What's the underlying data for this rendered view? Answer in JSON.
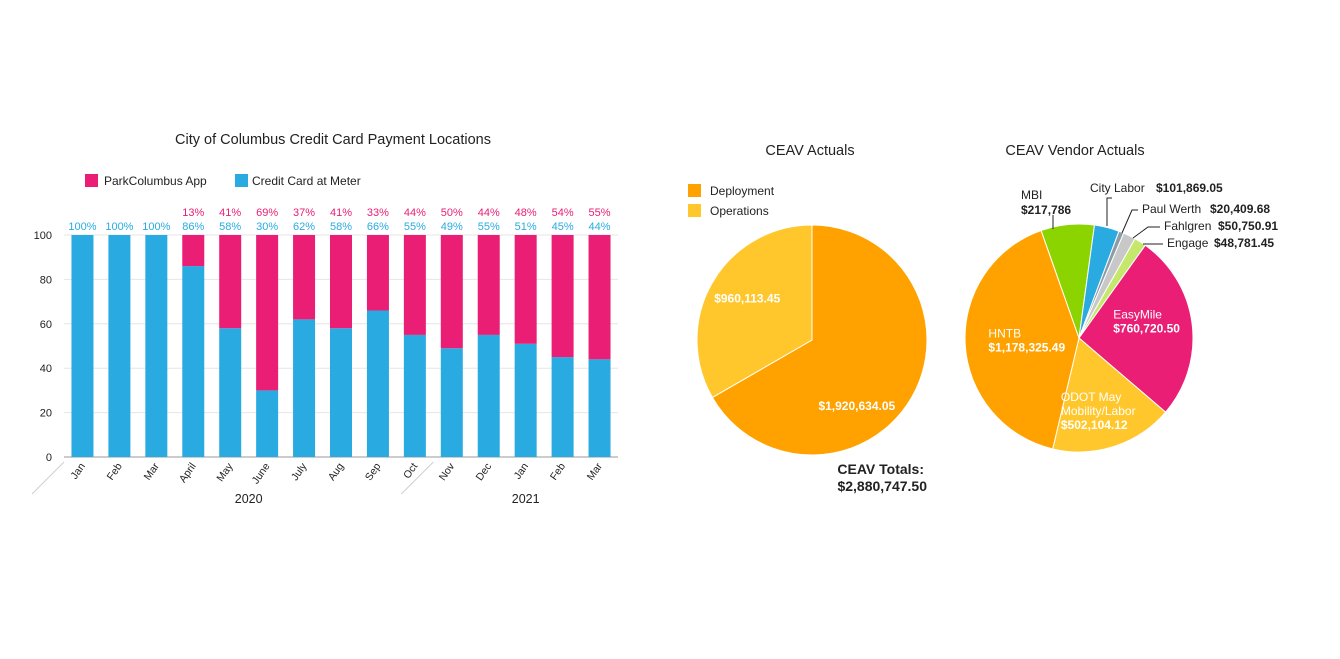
{
  "chart_data": [
    {
      "type": "bar",
      "stacked": true,
      "title": "City of Columbus Credit Card Payment Locations",
      "categories": [
        "Jan",
        "Feb",
        "Mar",
        "April",
        "May",
        "June",
        "July",
        "Aug",
        "Sep",
        "Oct",
        "Nov",
        "Dec",
        "Jan",
        "Feb",
        "Mar"
      ],
      "groups": [
        {
          "label": "2020",
          "from": 0,
          "to": 9
        },
        {
          "label": "2021",
          "from": 10,
          "to": 14
        }
      ],
      "series": [
        {
          "name": "Credit Card at Meter",
          "color": "#29abe2",
          "values": [
            100,
            100,
            100,
            86,
            58,
            30,
            62,
            58,
            66,
            55,
            49,
            55,
            51,
            45,
            44
          ],
          "labels": [
            "100%",
            "100%",
            "100%",
            "86%",
            "58%",
            "30%",
            "62%",
            "58%",
            "66%",
            "55%",
            "49%",
            "55%",
            "51%",
            "45%",
            "44%"
          ]
        },
        {
          "name": "ParkColumbus App",
          "color": "#e91e74",
          "values": [
            0,
            0,
            0,
            13,
            41,
            69,
            37,
            41,
            33,
            44,
            50,
            44,
            48,
            54,
            55
          ],
          "labels": [
            "",
            "",
            "",
            "13%",
            "41%",
            "69%",
            "37%",
            "41%",
            "33%",
            "44%",
            "50%",
            "44%",
            "48%",
            "54%",
            "55%"
          ]
        }
      ],
      "ylim": [
        0,
        100
      ],
      "yticks": [
        "0",
        "20",
        "40",
        "60",
        "80",
        "100"
      ],
      "grid": true,
      "legend": "top-left"
    },
    {
      "type": "pie",
      "title": "CEAV Actuals",
      "slices": [
        {
          "name": "Deployment",
          "value": 1920634.05,
          "label": "$1,920,634.05",
          "color": "#ffa200"
        },
        {
          "name": "Operations",
          "value": 960113.45,
          "label": "$960,113.45",
          "color": "#ffc72c"
        }
      ],
      "total_label": "CEAV Totals:",
      "total_value": "$2,880,747.50",
      "legend": "top-left"
    },
    {
      "type": "pie",
      "title": "CEAV Vendor Actuals",
      "slices": [
        {
          "name": "EasyMile",
          "value": 760720.5,
          "label": "$760,720.50",
          "color": "#e91e74"
        },
        {
          "name": "ODOT May Mobility/Labor",
          "value": 502104.12,
          "label": "$502,104.12",
          "color": "#ffc72c"
        },
        {
          "name": "HNTB",
          "value": 1178325.49,
          "label": "$1,178,325.49",
          "color": "#ffa200"
        },
        {
          "name": "MBI",
          "value": 217786,
          "label": "$217,786",
          "color": "#8cd400"
        },
        {
          "name": "City Labor",
          "value": 101869.05,
          "label": "$101,869.05",
          "color": "#29abe2"
        },
        {
          "name": "Paul Werth",
          "value": 20409.68,
          "label": "$20,409.68",
          "color": "#8c9ba8"
        },
        {
          "name": "Fahlgren",
          "value": 50750.91,
          "label": "$50,750.91",
          "color": "#c8c8c8"
        },
        {
          "name": "Engage",
          "value": 48781.45,
          "label": "$48,781.45",
          "color": "#c5e86c"
        }
      ],
      "callouts": [
        {
          "name": "MBI",
          "label": "$217,786"
        },
        {
          "name": "City Labor",
          "label": "$101,869.05"
        },
        {
          "name": "Paul Werth",
          "label": "$20,409.68"
        },
        {
          "name": "Fahlgren",
          "label": "$50,750.91"
        },
        {
          "name": "Engage",
          "label": "$48,781.45"
        }
      ],
      "inner": [
        {
          "lines": [
            "EasyMile"
          ],
          "label": "$760,720.50"
        },
        {
          "lines": [
            "HNTB"
          ],
          "label": "$1,178,325.49"
        },
        {
          "lines": [
            "ODOT May",
            "Mobility/Labor"
          ],
          "label": "$502,104.12"
        }
      ]
    }
  ]
}
